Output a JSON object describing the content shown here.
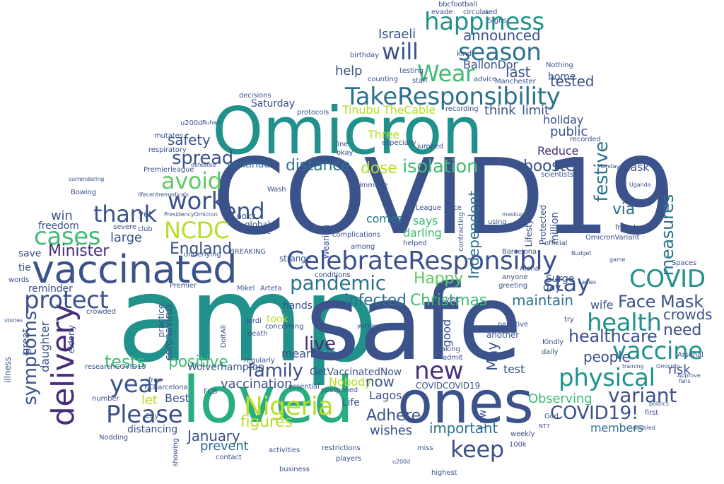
{
  "palette": [
    "#3b528b",
    "#21918c",
    "#5ec962",
    "#fde725",
    "#440154",
    "#2c728e",
    "#3fbc73",
    "#b5de2b",
    "#472d7b",
    "#27ad81"
  ],
  "words": [
    {
      "t": "COVID19",
      "c": "#3b528b"
    },
    {
      "t": "amp",
      "c": "#21918c"
    },
    {
      "t": "safe",
      "c": "#3b528b"
    },
    {
      "t": "Omicron",
      "c": "#21918c"
    },
    {
      "t": "loved",
      "c": "#27ad81"
    },
    {
      "t": "ones",
      "c": "#3b528b"
    },
    {
      "t": "vaccinated",
      "c": "#3b528b"
    },
    {
      "t": "CelebrateResponsibly",
      "c": "#3b528b"
    },
    {
      "t": "TakeResponsibility",
      "c": "#2c728e"
    },
    {
      "t": "Nigeria",
      "c": "#b5de2b"
    },
    {
      "t": "delivery",
      "c": "#472d7b"
    },
    {
      "t": "happiness",
      "c": "#21918c"
    },
    {
      "t": "season",
      "c": "#2c728e"
    },
    {
      "t": "Wear",
      "c": "#3fbc73"
    },
    {
      "t": "will",
      "c": "#3b528b"
    },
    {
      "t": "NCDC",
      "c": "#b5de2b"
    },
    {
      "t": "avoid",
      "c": "#5ec962"
    },
    {
      "t": "work",
      "c": "#3b528b"
    },
    {
      "t": "thank",
      "c": "#3b528b"
    },
    {
      "t": "cases",
      "c": "#3fbc73"
    },
    {
      "t": "end",
      "c": "#3b528b"
    },
    {
      "t": "protect",
      "c": "#3b528b"
    },
    {
      "t": "pandemic",
      "c": "#2c728e"
    },
    {
      "t": "stay",
      "c": "#3b528b"
    },
    {
      "t": "health",
      "c": "#21918c"
    },
    {
      "t": "vaccine",
      "c": "#21918c"
    },
    {
      "t": "COVID",
      "c": "#21918c"
    },
    {
      "t": "physical",
      "c": "#21918c"
    },
    {
      "t": "variant",
      "c": "#3b528b"
    },
    {
      "t": "Please",
      "c": "#3b528b"
    },
    {
      "t": "year",
      "c": "#3b528b"
    },
    {
      "t": "new",
      "c": "#472d7b"
    },
    {
      "t": "keep",
      "c": "#3b528b"
    },
    {
      "t": "COVID19!",
      "c": "#3b528b"
    },
    {
      "t": "Mask",
      "c": "#3b528b"
    },
    {
      "t": "Face",
      "c": "#3b528b"
    },
    {
      "t": "Minister",
      "c": "#472d7b"
    },
    {
      "t": "England",
      "c": "#3b528b"
    },
    {
      "t": "healthcare",
      "c": "#3b528b"
    },
    {
      "t": "symptoms",
      "c": "#3b528b"
    },
    {
      "t": "family",
      "c": "#3b528b"
    },
    {
      "t": "Christmas",
      "c": "#3fbc73"
    },
    {
      "t": "infected",
      "c": "#2c728e"
    },
    {
      "t": "tests",
      "c": "#3fbc73"
    },
    {
      "t": "positive",
      "c": "#3fbc73"
    },
    {
      "t": "live",
      "c": "#472d7b"
    },
    {
      "t": "Happy",
      "c": "#5ec962"
    },
    {
      "t": "spread",
      "c": "#3b528b"
    },
    {
      "t": "safety",
      "c": "#3b528b"
    },
    {
      "t": "isolation",
      "c": "#3fbc73"
    },
    {
      "t": "booster",
      "c": "#3b528b"
    },
    {
      "t": "dose",
      "c": "#b5de2b"
    },
    {
      "t": "festive",
      "c": "#2c728e"
    },
    {
      "t": "measures",
      "c": "#2c728e"
    },
    {
      "t": "announced",
      "c": "#3b528b"
    },
    {
      "t": "help",
      "c": "#3b528b"
    },
    {
      "t": "last",
      "c": "#3b528b"
    },
    {
      "t": "tested",
      "c": "#3b528b"
    },
    {
      "t": "crowds",
      "c": "#3b528b"
    },
    {
      "t": "need",
      "c": "#3b528b"
    },
    {
      "t": "maintain",
      "c": "#2c728e"
    },
    {
      "t": "people",
      "c": "#3b528b"
    },
    {
      "t": "figures",
      "c": "#b5de2b"
    },
    {
      "t": "Adhere",
      "c": "#3b528b"
    },
    {
      "t": "wishes",
      "c": "#3b528b"
    },
    {
      "t": "important",
      "c": "#2c728e"
    },
    {
      "t": "members",
      "c": "#2c728e"
    },
    {
      "t": "January",
      "c": "#3b528b"
    },
    {
      "t": "prevent",
      "c": "#2c728e"
    },
    {
      "t": "vaccination",
      "c": "#3b528b"
    },
    {
      "t": "distance",
      "c": "#2c728e"
    },
    {
      "t": "Israeli",
      "c": "#3b528b"
    },
    {
      "t": "Independent",
      "c": "#2c728e"
    },
    {
      "t": "BallonDor",
      "c": "#3b528b"
    },
    {
      "t": "Tinubu",
      "c": "#b5de2b"
    },
    {
      "t": "TheCable",
      "c": "#b5de2b"
    },
    {
      "t": "think",
      "c": "#3b528b"
    },
    {
      "t": "limit",
      "c": "#3b528b"
    },
    {
      "t": "holiday",
      "c": "#3b528b"
    },
    {
      "t": "public",
      "c": "#3b528b"
    },
    {
      "t": "Reduce",
      "c": "#472d7b"
    },
    {
      "t": "home",
      "c": "#3b528b"
    },
    {
      "t": "GetVaccinatedNow",
      "c": "#3b528b"
    },
    {
      "t": "Nobody",
      "c": "#b5de2b"
    },
    {
      "t": "now",
      "c": "#3b528b"
    },
    {
      "t": "Lagos",
      "c": "#3b528b"
    },
    {
      "t": "Life",
      "c": "#3b528b"
    },
    {
      "t": "mean",
      "c": "#3b528b"
    },
    {
      "t": "Observing",
      "c": "#3fbc73"
    },
    {
      "t": "test",
      "c": "#3b528b"
    },
    {
      "t": "risk",
      "c": "#3b528b"
    },
    {
      "t": "wife",
      "c": "#3b528b"
    },
    {
      "t": "Surge",
      "c": "#3b528b"
    },
    {
      "t": "day",
      "c": "#3b528b"
    },
    {
      "t": "Best",
      "c": "#3b528b"
    },
    {
      "t": "let",
      "c": "#b5de2b"
    },
    {
      "t": "large",
      "c": "#3b528b"
    },
    {
      "t": "win",
      "c": "#3b528b"
    },
    {
      "t": "freedom",
      "c": "#3b528b"
    },
    {
      "t": "save",
      "c": "#3b528b"
    },
    {
      "t": "tie",
      "c": "#3b528b"
    },
    {
      "t": "reminder",
      "c": "#3b528b"
    },
    {
      "t": "mask",
      "c": "#3b528b"
    },
    {
      "t": "via",
      "c": "#2c728e"
    },
    {
      "t": "comes",
      "c": "#2c728e"
    },
    {
      "t": "says",
      "c": "#3fbc73"
    },
    {
      "t": "darling",
      "c": "#3fbc73"
    },
    {
      "t": "hands",
      "c": "#3b528b"
    },
    {
      "t": "took",
      "c": "#b5de2b"
    },
    {
      "t": "Saturday",
      "c": "#3b528b"
    },
    {
      "t": "continue",
      "c": "#2c728e"
    },
    {
      "t": "Wolverhampton",
      "c": "#3b528b"
    },
    {
      "t": "distancing",
      "c": "#3b528b"
    },
    {
      "t": "Premierleague",
      "c": "#3b528b"
    },
    {
      "t": "Three",
      "c": "#b5de2b"
    },
    {
      "t": "May",
      "c": "#3b528b"
    },
    {
      "t": "daughter",
      "c": "#3b528b"
    },
    {
      "t": "coronavirus",
      "c": "#3b528b"
    },
    {
      "t": "COVIDCOVID19",
      "c": "#3b528b"
    },
    {
      "t": "bbcfootball",
      "c": "#3b528b"
    },
    {
      "t": "testing",
      "c": "#3b528b"
    },
    {
      "t": "counting",
      "c": "#3b528b"
    },
    {
      "t": "staff",
      "c": "#3b528b"
    },
    {
      "t": "advice",
      "c": "#3b528b"
    },
    {
      "t": "Manchester",
      "c": "#3b528b"
    },
    {
      "t": "Nothing",
      "c": "#3b528b"
    },
    {
      "t": "u200d",
      "c": "#3b528b"
    },
    {
      "t": "decisions",
      "c": "#3b528b"
    },
    {
      "t": "Buhari",
      "c": "#3b528b"
    },
    {
      "t": "global",
      "c": "#3b528b"
    },
    {
      "t": "Looks",
      "c": "#3b528b"
    },
    {
      "t": "France",
      "c": "#3b528b"
    },
    {
      "t": "Wash",
      "c": "#3b528b"
    },
    {
      "t": "BREAKING",
      "c": "#3b528b"
    },
    {
      "t": "strange",
      "c": "#3b528b"
    },
    {
      "t": "Barcelona",
      "c": "#3b528b"
    },
    {
      "t": "Budget",
      "c": "#3b528b"
    },
    {
      "t": "friends",
      "c": "#3b528b"
    },
    {
      "t": "Monday",
      "c": "#3b528b"
    },
    {
      "t": "Uganda",
      "c": "#3b528b"
    },
    {
      "t": "game",
      "c": "#3b528b"
    },
    {
      "t": "Spaces",
      "c": "#3b528b"
    },
    {
      "t": "Ladies",
      "c": "#3b528b"
    },
    {
      "t": "Arsenal",
      "c": "#3b528b"
    },
    {
      "t": "fans",
      "c": "#3b528b"
    },
    {
      "t": "training",
      "c": "#3b528b"
    },
    {
      "t": "Approve",
      "c": "#3b528b"
    },
    {
      "t": "politics",
      "c": "#3b528b"
    },
    {
      "t": "Omicron",
      "c": "#3b528b"
    },
    {
      "t": "Bowing",
      "c": "#3b528b"
    },
    {
      "t": "yet",
      "c": "#3b528b"
    },
    {
      "t": "club",
      "c": "#3b528b"
    },
    {
      "t": "severe",
      "c": "#3b528b"
    },
    {
      "t": "underlying",
      "c": "#3b528b"
    },
    {
      "t": "words",
      "c": "#3b528b"
    },
    {
      "t": "stories",
      "c": "#3b528b"
    },
    {
      "t": "illness",
      "c": "#3b528b"
    },
    {
      "t": "great",
      "c": "#3b528b"
    },
    {
      "t": "elderly",
      "c": "#3b528b"
    },
    {
      "t": "practice",
      "c": "#3b528b"
    },
    {
      "t": "death",
      "c": "#3b528b"
    },
    {
      "t": "Jordi",
      "c": "#3b528b"
    },
    {
      "t": "concerning",
      "c": "#3b528b"
    },
    {
      "t": "crowded",
      "c": "#3b528b"
    },
    {
      "t": "Premier",
      "c": "#3b528b"
    },
    {
      "t": "Mikel",
      "c": "#3b528b"
    },
    {
      "t": "Arteta",
      "c": "#3b528b"
    },
    {
      "t": "FCB",
      "c": "#3b528b"
    },
    {
      "t": "FCBarcelona",
      "c": "#3b528b"
    },
    {
      "t": "researchCOVID19",
      "c": "#3b528b"
    },
    {
      "t": "number",
      "c": "#3b528b"
    },
    {
      "t": "free",
      "c": "#3b528b"
    },
    {
      "t": "City",
      "c": "#3b528b"
    },
    {
      "t": "Nodding",
      "c": "#3b528b"
    },
    {
      "t": "showing",
      "c": "#3b528b"
    },
    {
      "t": "business",
      "c": "#3b528b"
    },
    {
      "t": "contact",
      "c": "#3b528b"
    },
    {
      "t": "essential",
      "c": "#3b528b"
    },
    {
      "t": "postponed",
      "c": "#3b528b"
    },
    {
      "t": "restrictions",
      "c": "#3b528b"
    },
    {
      "t": "activities",
      "c": "#3b528b"
    },
    {
      "t": "players",
      "c": "#3b528b"
    },
    {
      "t": "miss",
      "c": "#3b528b"
    },
    {
      "t": "highest",
      "c": "#3b528b"
    },
    {
      "t": "100k",
      "c": "#3b528b"
    },
    {
      "t": "weekly",
      "c": "#3b528b"
    },
    {
      "t": "another",
      "c": "#3b528b"
    },
    {
      "t": "taking",
      "c": "#3b528b"
    },
    {
      "t": "admit",
      "c": "#3b528b"
    },
    {
      "t": "doubled",
      "c": "#3b528b"
    },
    {
      "t": "first",
      "c": "#3b528b"
    },
    {
      "t": "Kindly",
      "c": "#3b528b"
    },
    {
      "t": "daily",
      "c": "#3b528b"
    },
    {
      "t": "try",
      "c": "#3b528b"
    },
    {
      "t": "negative",
      "c": "#3b528b"
    },
    {
      "t": "visit",
      "c": "#3b528b"
    },
    {
      "t": "God",
      "c": "#3b528b"
    },
    {
      "t": "NT7",
      "c": "#3b528b"
    },
    {
      "t": "conditions",
      "c": "#3b528b"
    },
    {
      "t": "immune",
      "c": "#3b528b"
    },
    {
      "t": "among",
      "c": "#3b528b"
    },
    {
      "t": "complications",
      "c": "#3b528b"
    },
    {
      "t": "helped",
      "c": "#3b528b"
    },
    {
      "t": "anyone",
      "c": "#3b528b"
    },
    {
      "t": "greeting",
      "c": "#3b528b"
    },
    {
      "t": "Aloha",
      "c": "#3b528b"
    },
    {
      "t": "recorded",
      "c": "#3b528b"
    },
    {
      "t": "official",
      "c": "#3b528b"
    },
    {
      "t": "OmicronVariant",
      "c": "#3b528b"
    },
    {
      "t": "scientists",
      "c": "#3b528b"
    },
    {
      "t": "protocols",
      "c": "#3b528b"
    },
    {
      "t": "recording",
      "c": "#3b528b"
    },
    {
      "t": "especially",
      "c": "#3b528b"
    },
    {
      "t": "fine",
      "c": "#3b528b"
    },
    {
      "t": "jumped",
      "c": "#3b528b"
    },
    {
      "t": "okay",
      "c": "#3b528b"
    },
    {
      "t": "face",
      "c": "#3b528b"
    },
    {
      "t": "League",
      "c": "#3b528b"
    },
    {
      "t": "using",
      "c": "#3b528b"
    },
    {
      "t": "maskup",
      "c": "#3b528b"
    },
    {
      "t": "u200d",
      "c": "#3b528b"
    },
    {
      "t": "birthday",
      "c": "#3b528b"
    },
    {
      "t": "Signs",
      "c": "#3b528b"
    },
    {
      "t": "evade",
      "c": "#3b528b"
    },
    {
      "t": "circulated",
      "c": "#3b528b"
    },
    {
      "t": "kind",
      "c": "#3b528b"
    },
    {
      "t": "respiratory",
      "c": "#3b528b"
    },
    {
      "t": "mutates",
      "c": "#3b528b"
    },
    {
      "t": "lifecentremedicals",
      "c": "#3b528b"
    },
    {
      "t": "surrendering",
      "c": "#3b528b"
    },
    {
      "t": "PresidencyOmicron",
      "c": "#3b528b"
    },
    {
      "t": "defeated",
      "c": "#3b528b"
    },
    {
      "t": "DoItAll",
      "c": "#3b528b"
    },
    {
      "t": "Lifestyle",
      "c": "#3b528b"
    },
    {
      "t": "Protected",
      "c": "#3b528b"
    },
    {
      "t": "million",
      "c": "#3b528b"
    },
    {
      "t": "without",
      "c": "#3b528b"
    },
    {
      "t": "regularly",
      "c": "#3b528b"
    },
    {
      "t": "good",
      "c": "#3b528b"
    },
    {
      "t": "Wearing",
      "c": "#3b528b"
    },
    {
      "t": "contracting",
      "c": "#3b528b"
    },
    {
      "t": "Law",
      "c": "#3b528b"
    },
    {
      "t": "Tis",
      "c": "#3b528b"
    }
  ]
}
